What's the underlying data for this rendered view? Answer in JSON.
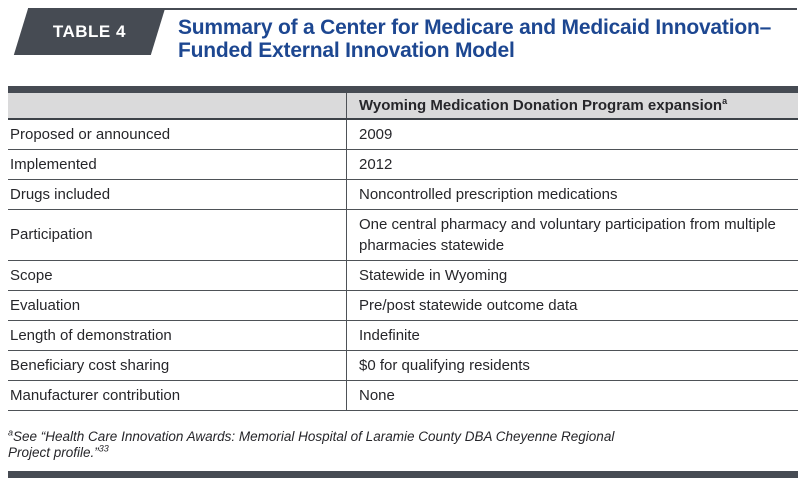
{
  "page": {
    "badge": "TABLE 4",
    "title": "Summary of a Center for Medicare and Medicaid Innovation–Funded External Innovation Model"
  },
  "table": {
    "column_header": {
      "label_column": "",
      "value_column": "Wyoming Medication Donation Program expansion",
      "footnote_marker": "a"
    },
    "rows": [
      {
        "label": "Proposed or announced",
        "value": "2009"
      },
      {
        "label": "Implemented",
        "value": "2012"
      },
      {
        "label": "Drugs included",
        "value": "Noncontrolled prescription medications"
      },
      {
        "label": "Participation",
        "value": "One central pharmacy and voluntary participation from multiple pharmacies statewide"
      },
      {
        "label": "Scope",
        "value": "Statewide in Wyoming"
      },
      {
        "label": "Evaluation",
        "value": "Pre/post statewide outcome data"
      },
      {
        "label": "Length of demonstration",
        "value": "Indefinite"
      },
      {
        "label": "Beneficiary cost sharing",
        "value": "$0 for qualifying residents"
      },
      {
        "label": "Manufacturer contribution",
        "value": "None"
      }
    ]
  },
  "footnote": {
    "marker": "a",
    "line1": "See “Health Care Innovation Awards: Memorial Hospital of Laramie County DBA Cheyenne Regional",
    "line2": "Project profile.”",
    "reference": "33"
  },
  "colors": {
    "bar_dark_slate": "#464b53",
    "title_blue": "#1d4791",
    "header_row_bg": "#dadadb",
    "rule_dark": "#3d4248",
    "grid_line": "#4e5257",
    "body_text": "#26262a"
  }
}
